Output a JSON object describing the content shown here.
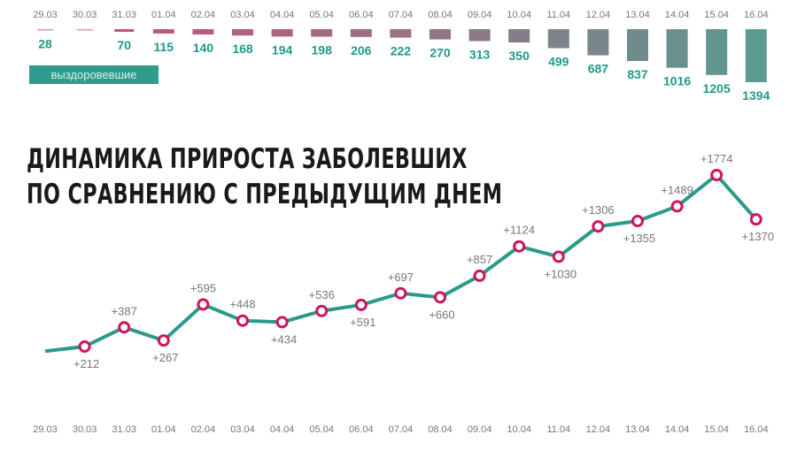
{
  "chart_data": [
    {
      "type": "bar",
      "title": "",
      "legend": "выздоровевшие",
      "categories": [
        "29.03",
        "30.03",
        "31.03",
        "01.04",
        "02.04",
        "03.04",
        "04.04",
        "05.04",
        "06.04",
        "07.04",
        "08.04",
        "09.04",
        "10.04",
        "11.04",
        "12.04",
        "13.04",
        "14.04",
        "15.04",
        "16.04"
      ],
      "values": [
        28,
        28,
        70,
        115,
        140,
        168,
        194,
        198,
        206,
        222,
        270,
        313,
        350,
        499,
        687,
        837,
        1016,
        1205,
        1394
      ],
      "value_labels": [
        "28",
        "",
        "70",
        "115",
        "140",
        "168",
        "194",
        "198",
        "206",
        "222",
        "270",
        "313",
        "350",
        "499",
        "687",
        "837",
        "1016",
        "1205",
        "1394"
      ],
      "colors": {
        "start": "#c8507a",
        "end": "#5b9a91",
        "label": "#1e9a89"
      }
    },
    {
      "type": "line",
      "title": "ДИНАМИКА ПРИРОСТА ЗАБОЛЕВШИХ",
      "subtitle": "ПО СРАВНЕНИЮ С ПРЕДЫДУЩИМ ДНЕМ",
      "categories": [
        "29.03",
        "30.03",
        "31.03",
        "01.04",
        "02.04",
        "03.04",
        "04.04",
        "05.04",
        "06.04",
        "07.04",
        "08.04",
        "09.04",
        "10.04",
        "11.04",
        "12.04",
        "13.04",
        "14.04",
        "15.04",
        "16.04"
      ],
      "values": [
        170,
        212,
        387,
        267,
        595,
        448,
        434,
        536,
        591,
        697,
        660,
        857,
        1124,
        1030,
        1306,
        1355,
        1489,
        1774,
        1370
      ],
      "labels": [
        "",
        "+212",
        "+387",
        "+267",
        "+595",
        "+448",
        "+434",
        "+536",
        "+591",
        "+697",
        "+660",
        "+857",
        "+1124",
        "+1030",
        "+1306",
        "+1355",
        "+1489",
        "+1774",
        "+1370"
      ],
      "label_position": [
        "",
        "below",
        "above",
        "below",
        "above",
        "above",
        "below",
        "above",
        "below",
        "above",
        "below",
        "above",
        "above",
        "below",
        "above",
        "below",
        "above",
        "above",
        "below"
      ],
      "colors": {
        "line": "#2a9a8c",
        "marker": "#d0145a"
      }
    }
  ]
}
